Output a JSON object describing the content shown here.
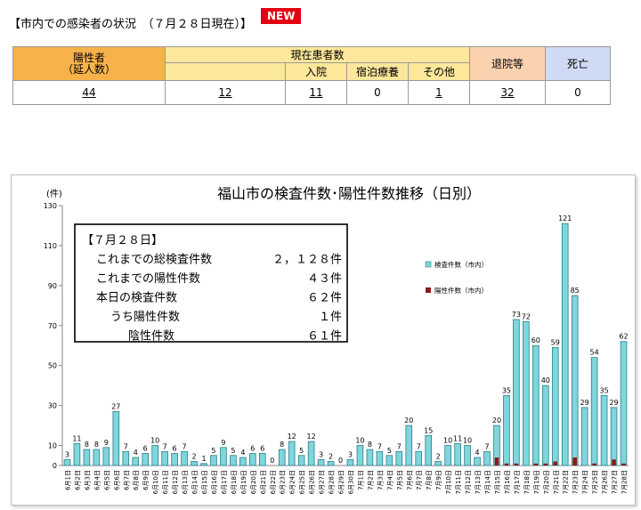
{
  "header": {
    "title": "【市内での感染者の状況　（７月２８日現在）】",
    "new_badge": "NEW"
  },
  "stats": {
    "labels": {
      "positive": "陽性者\n（延人数）",
      "current": "現在患者数",
      "hospital": "入院",
      "lodging": "宿泊療養",
      "other": "その他",
      "discharged": "退院等",
      "death": "死亡"
    },
    "values": {
      "positive": "44",
      "current": "12",
      "hospital": "11",
      "lodging": "0",
      "other": "1",
      "discharged": "32",
      "death": "0"
    }
  },
  "chart_data": {
    "type": "bar",
    "title": "福山市の検査件数･陽性件数推移（日別）",
    "ylabel": "(件)",
    "ylim": [
      0,
      130
    ],
    "yticks": [
      0,
      10,
      30,
      50,
      70,
      90,
      110,
      130
    ],
    "categories": [
      "6月1日",
      "6月2日",
      "6月3日",
      "6月4日",
      "6月5日",
      "6月6日",
      "6月7日",
      "6月8日",
      "6月9日",
      "6月10日",
      "6月11日",
      "6月12日",
      "6月13日",
      "6月14日",
      "6月15日",
      "6月16日",
      "6月17日",
      "6月18日",
      "6月19日",
      "6月20日",
      "6月21日",
      "6月22日",
      "6月23日",
      "6月24日",
      "6月25日",
      "6月26日",
      "6月27日",
      "6月28日",
      "6月29日",
      "6月30日",
      "7月1日",
      "7月2日",
      "7月3日",
      "7月4日",
      "7月5日",
      "7月6日",
      "7月7日",
      "7月8日",
      "7月9日",
      "7月10日",
      "7月11日",
      "7月12日",
      "7月13日",
      "7月14日",
      "7月15日",
      "7月16日",
      "7月17日",
      "7月18日",
      "7月19日",
      "7月20日",
      "7月21日",
      "7月22日",
      "7月23日",
      "7月24日",
      "7月25日",
      "7月26日",
      "7月27日",
      "7月28日"
    ],
    "series": [
      {
        "name": "検査件数（市内）",
        "color": "#7fd6dc",
        "values": [
          3,
          11,
          8,
          8,
          9,
          27,
          7,
          4,
          6,
          10,
          7,
          6,
          7,
          2,
          1,
          5,
          9,
          5,
          4,
          6,
          6,
          0,
          8,
          12,
          5,
          12,
          3,
          2,
          0,
          3,
          10,
          8,
          7,
          5,
          7,
          20,
          7,
          15,
          2,
          10,
          11,
          10,
          4,
          7,
          20,
          35,
          73,
          72,
          60,
          40,
          59,
          121,
          85,
          29,
          54,
          35,
          29,
          62
        ],
        "labels": [
          "3",
          "11",
          "8",
          "8",
          "9",
          "27",
          "7",
          "4",
          "6",
          "10",
          "7",
          "6",
          "7",
          "2",
          "1",
          "5",
          "9",
          "5",
          "4",
          "6",
          "6",
          "0",
          "8",
          "12",
          "5",
          "12",
          "3",
          "2",
          "0",
          "3",
          "10",
          "8",
          "7",
          "5",
          "7",
          "20",
          "7",
          "15",
          "2",
          "10",
          "11",
          "10",
          "4",
          "7",
          "20",
          "35",
          "73",
          "72",
          "60",
          "40",
          "59",
          "121",
          "85",
          "29",
          "54",
          "35",
          "29",
          "62"
        ]
      },
      {
        "name": "陽性件数（市内）",
        "color": "#8b1a1a",
        "values": [
          0,
          0,
          0,
          0,
          0,
          0,
          0,
          0,
          0,
          0,
          0,
          0,
          0,
          0,
          0,
          0,
          0,
          0,
          0,
          0,
          0,
          0,
          0,
          0,
          0,
          0,
          0,
          0,
          0,
          0,
          0,
          0,
          0,
          0,
          0,
          0,
          0,
          0,
          0,
          0,
          0,
          0,
          0,
          0,
          4,
          1,
          1,
          0,
          1,
          1,
          2,
          0,
          4,
          0,
          1,
          0,
          3,
          1
        ]
      }
    ],
    "legend_position": "right",
    "annotation": {
      "lines": [
        {
          "label": "【７月２８日】",
          "value": ""
        },
        {
          "label": "これまでの総検査件数",
          "value": "２，１２８件"
        },
        {
          "label": "これまでの陽性件数",
          "value": "４３件"
        },
        {
          "label": "本日の検査件数",
          "value": "６２件"
        },
        {
          "label": "うち陽性件数",
          "value": "１件"
        },
        {
          "label": "陰性件数",
          "value": "６１件"
        }
      ]
    }
  }
}
